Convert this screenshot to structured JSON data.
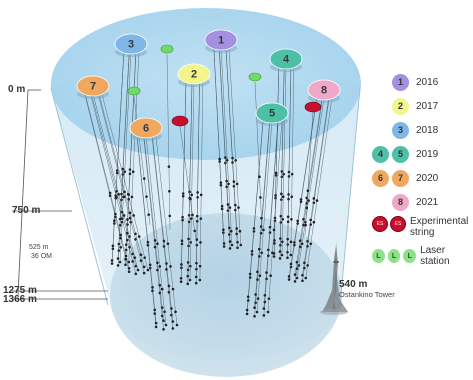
{
  "depths": {
    "surface": "0 m",
    "d750": "750 m",
    "d1275": "1275 m",
    "d1366": "1366 m",
    "string_len": "525 m",
    "om_count": "36 OM"
  },
  "tower": {
    "height": "540 m",
    "name": "Ostankino Tower"
  },
  "legend": {
    "years": [
      {
        "year": "2016",
        "clusters": [
          "1"
        ],
        "color": "#a58fe0"
      },
      {
        "year": "2017",
        "clusters": [
          "2"
        ],
        "color": "#f2f58a"
      },
      {
        "year": "2018",
        "clusters": [
          "3"
        ],
        "color": "#7fb6e8"
      },
      {
        "year": "2019",
        "clusters": [
          "4",
          "5"
        ],
        "color": "#4ec0a8"
      },
      {
        "year": "2020",
        "clusters": [
          "6",
          "7"
        ],
        "color": "#f0a860"
      },
      {
        "year": "2021",
        "clusters": [
          "8"
        ],
        "color": "#f0a8c8"
      }
    ],
    "experimental": {
      "label_line1": "Experimental",
      "label_line2": "string",
      "badge": "ES"
    },
    "laser": {
      "label": "Laser station",
      "badge": "L"
    }
  },
  "clusters": [
    {
      "id": "1",
      "color": "#a58fe0"
    },
    {
      "id": "2",
      "color": "#f2f58a"
    },
    {
      "id": "3",
      "color": "#7fb6e8"
    },
    {
      "id": "4",
      "color": "#4ec0a8"
    },
    {
      "id": "5",
      "color": "#4ec0a8"
    },
    {
      "id": "6",
      "color": "#f0a860"
    },
    {
      "id": "7",
      "color": "#f0a860"
    },
    {
      "id": "8",
      "color": "#f0a8c8"
    }
  ]
}
